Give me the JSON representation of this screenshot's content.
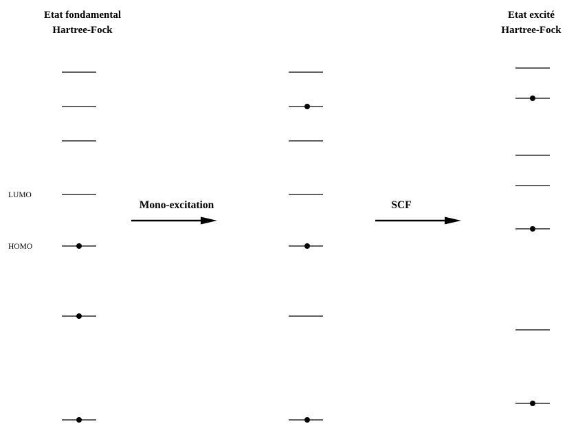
{
  "columns": [
    {
      "id": "ground",
      "title": [
        "Etat fondamental",
        "Hartree-Fock"
      ],
      "levels": [
        {
          "occupied": false,
          "label": ""
        },
        {
          "occupied": false,
          "label": ""
        },
        {
          "occupied": false,
          "label": ""
        },
        {
          "occupied": false,
          "label": "LUMO"
        },
        {
          "occupied": true,
          "label": "HOMO"
        },
        {
          "occupied": true,
          "label": ""
        },
        {
          "occupied": true,
          "label": ""
        }
      ]
    },
    {
      "id": "mono",
      "title": [],
      "levels": [
        {
          "occupied": false
        },
        {
          "occupied": true
        },
        {
          "occupied": false
        },
        {
          "occupied": false
        },
        {
          "occupied": true
        },
        {
          "occupied": false
        },
        {
          "occupied": true
        }
      ]
    },
    {
      "id": "excited",
      "title": [
        "Etat excité",
        "Hartree-Fock"
      ],
      "levels": [
        {
          "occupied": false
        },
        {
          "occupied": true
        },
        {
          "occupied": false
        },
        {
          "occupied": false
        },
        {
          "occupied": true
        },
        {
          "occupied": false
        },
        {
          "occupied": true
        }
      ]
    }
  ],
  "arrows": [
    {
      "label": "Mono-excitation"
    },
    {
      "label": "SCF"
    }
  ]
}
